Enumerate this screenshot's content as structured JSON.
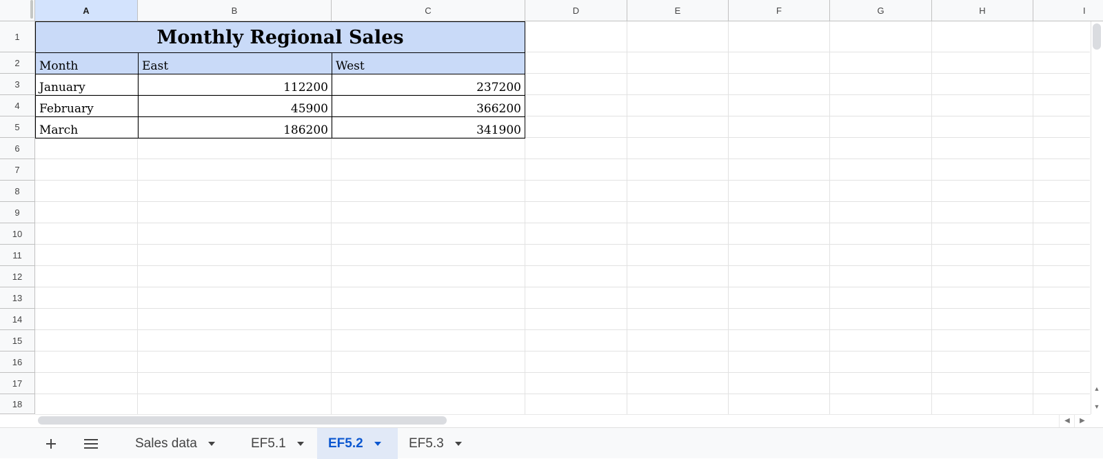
{
  "columns": [
    "A",
    "B",
    "C",
    "D",
    "E",
    "F",
    "G",
    "H",
    "I"
  ],
  "rows": [
    "1",
    "2",
    "3",
    "4",
    "5",
    "6",
    "7",
    "8",
    "9",
    "10",
    "11",
    "12",
    "13",
    "14",
    "15",
    "16",
    "17",
    "18"
  ],
  "sheet": {
    "title": "Monthly Regional Sales",
    "headers": [
      "Month",
      "East",
      "West"
    ],
    "data": [
      {
        "month": "January",
        "east": "112200",
        "west": "237200"
      },
      {
        "month": "February",
        "east": "45900",
        "west": "366200"
      },
      {
        "month": "March",
        "east": "186200",
        "west": "341900"
      }
    ]
  },
  "tabs": [
    {
      "label": "Sales data",
      "active": false
    },
    {
      "label": "EF5.1",
      "active": false
    },
    {
      "label": "EF5.2",
      "active": true
    },
    {
      "label": "EF5.3",
      "active": false
    }
  ],
  "icons": {
    "add": "plus-icon",
    "all_sheets": "menu-icon"
  },
  "colors": {
    "header_fill": "#c9daf8",
    "active_tab": "#0b57d0",
    "selected_col": "#d3e3fd"
  }
}
